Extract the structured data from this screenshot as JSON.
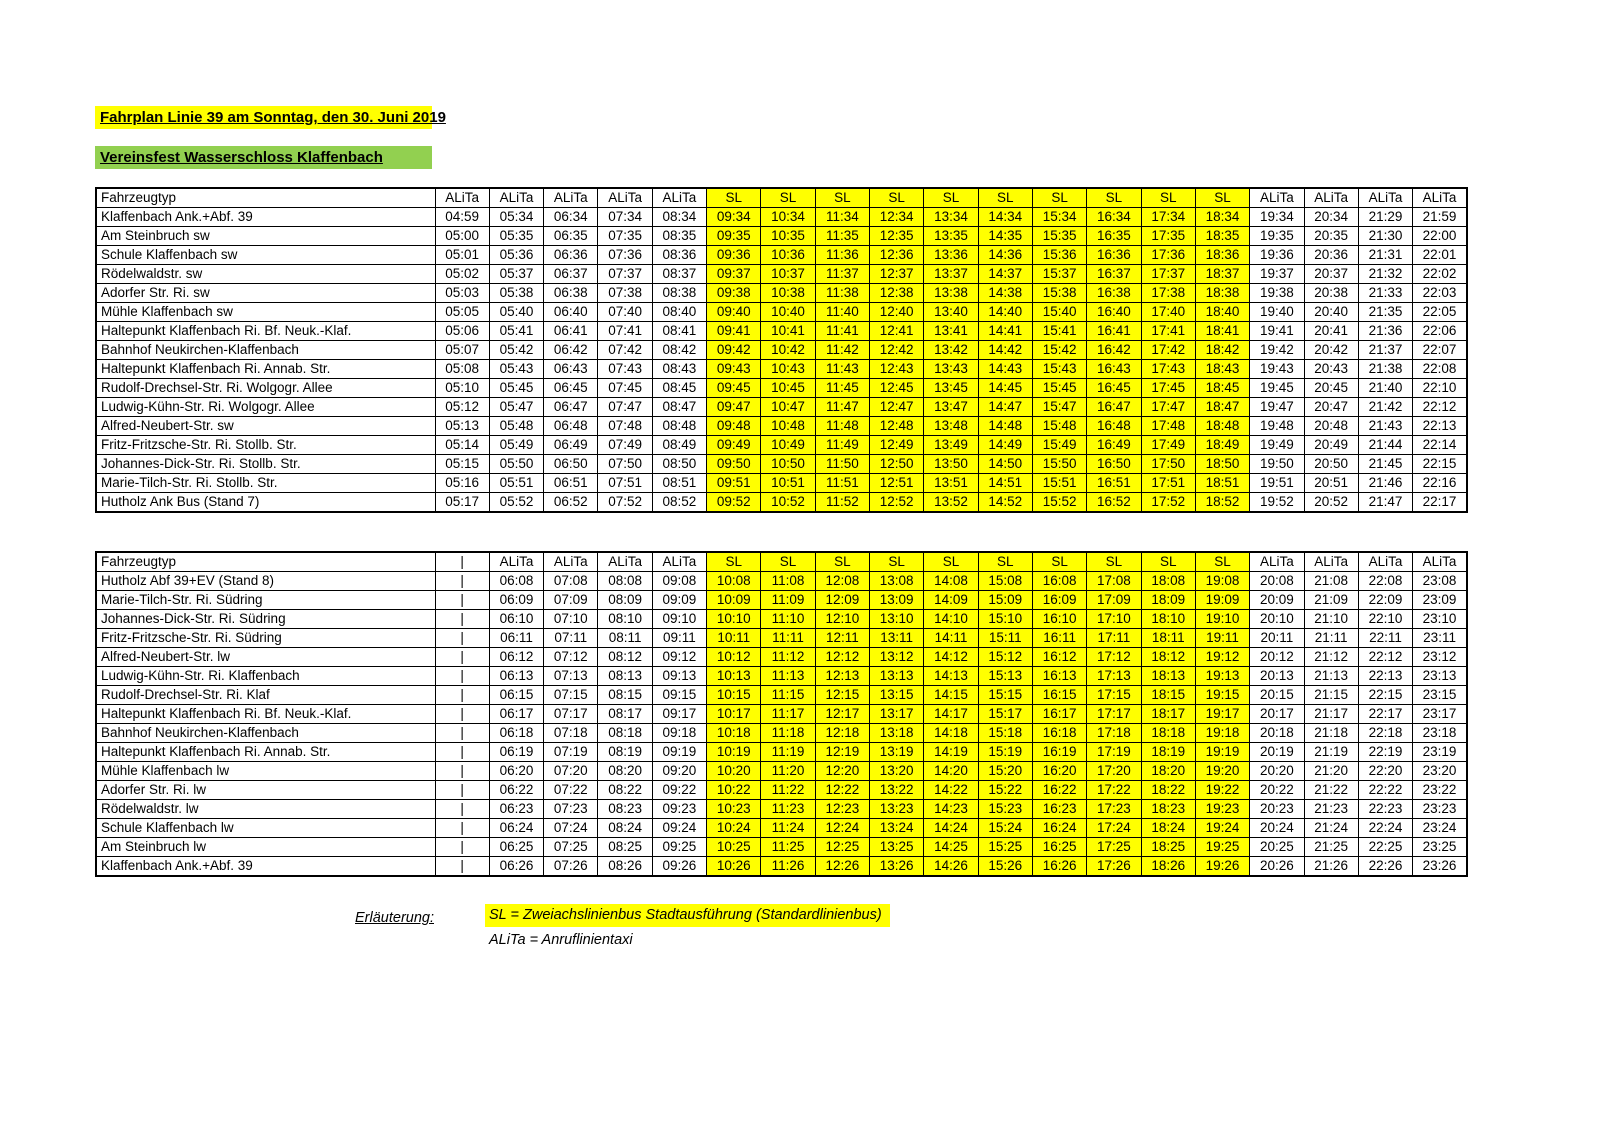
{
  "page": {
    "title": "Fahrplan Linie 39 am Sonntag, den 30. Juni 2019",
    "subtitle": "Vereinsfest Wasserschloss Klaffenbach"
  },
  "colors": {
    "highlight_yellow": "#FFFF00",
    "highlight_green": "#92D050"
  },
  "legend": {
    "label": "Erläuterung:",
    "sl_line": "SL = Zweiachslinienbus Stadtausführung (Standardlinienbus)",
    "alita_line": "ALiTa = Anruflinientaxi"
  },
  "tables": [
    {
      "id": "outbound",
      "header": [
        "Fahrzeugtyp",
        "ALiTa",
        "ALiTa",
        "ALiTa",
        "ALiTa",
        "ALiTa",
        "SL",
        "SL",
        "SL",
        "SL",
        "SL",
        "SL",
        "SL",
        "SL",
        "SL",
        "SL",
        "ALiTa",
        "ALiTa",
        "ALiTa",
        "ALiTa"
      ],
      "rows": [
        {
          "stop": "Klaffenbach Ank.+Abf. 39",
          "times": [
            "04:59",
            "05:34",
            "06:34",
            "07:34",
            "08:34",
            "09:34",
            "10:34",
            "11:34",
            "12:34",
            "13:34",
            "14:34",
            "15:34",
            "16:34",
            "17:34",
            "18:34",
            "19:34",
            "20:34",
            "21:29",
            "21:59"
          ]
        },
        {
          "stop": "Am Steinbruch sw",
          "times": [
            "05:00",
            "05:35",
            "06:35",
            "07:35",
            "08:35",
            "09:35",
            "10:35",
            "11:35",
            "12:35",
            "13:35",
            "14:35",
            "15:35",
            "16:35",
            "17:35",
            "18:35",
            "19:35",
            "20:35",
            "21:30",
            "22:00"
          ]
        },
        {
          "stop": "Schule Klaffenbach sw",
          "times": [
            "05:01",
            "05:36",
            "06:36",
            "07:36",
            "08:36",
            "09:36",
            "10:36",
            "11:36",
            "12:36",
            "13:36",
            "14:36",
            "15:36",
            "16:36",
            "17:36",
            "18:36",
            "19:36",
            "20:36",
            "21:31",
            "22:01"
          ]
        },
        {
          "stop": "Rödelwaldstr. sw",
          "times": [
            "05:02",
            "05:37",
            "06:37",
            "07:37",
            "08:37",
            "09:37",
            "10:37",
            "11:37",
            "12:37",
            "13:37",
            "14:37",
            "15:37",
            "16:37",
            "17:37",
            "18:37",
            "19:37",
            "20:37",
            "21:32",
            "22:02"
          ]
        },
        {
          "stop": "Adorfer Str. Ri. sw",
          "times": [
            "05:03",
            "05:38",
            "06:38",
            "07:38",
            "08:38",
            "09:38",
            "10:38",
            "11:38",
            "12:38",
            "13:38",
            "14:38",
            "15:38",
            "16:38",
            "17:38",
            "18:38",
            "19:38",
            "20:38",
            "21:33",
            "22:03"
          ]
        },
        {
          "stop": "Mühle Klaffenbach sw",
          "times": [
            "05:05",
            "05:40",
            "06:40",
            "07:40",
            "08:40",
            "09:40",
            "10:40",
            "11:40",
            "12:40",
            "13:40",
            "14:40",
            "15:40",
            "16:40",
            "17:40",
            "18:40",
            "19:40",
            "20:40",
            "21:35",
            "22:05"
          ]
        },
        {
          "stop": "Haltepunkt Klaffenbach Ri. Bf. Neuk.-Klaf.",
          "times": [
            "05:06",
            "05:41",
            "06:41",
            "07:41",
            "08:41",
            "09:41",
            "10:41",
            "11:41",
            "12:41",
            "13:41",
            "14:41",
            "15:41",
            "16:41",
            "17:41",
            "18:41",
            "19:41",
            "20:41",
            "21:36",
            "22:06"
          ]
        },
        {
          "stop": "Bahnhof Neukirchen-Klaffenbach",
          "times": [
            "05:07",
            "05:42",
            "06:42",
            "07:42",
            "08:42",
            "09:42",
            "10:42",
            "11:42",
            "12:42",
            "13:42",
            "14:42",
            "15:42",
            "16:42",
            "17:42",
            "18:42",
            "19:42",
            "20:42",
            "21:37",
            "22:07"
          ]
        },
        {
          "stop": "Haltepunkt Klaffenbach Ri. Annab. Str.",
          "times": [
            "05:08",
            "05:43",
            "06:43",
            "07:43",
            "08:43",
            "09:43",
            "10:43",
            "11:43",
            "12:43",
            "13:43",
            "14:43",
            "15:43",
            "16:43",
            "17:43",
            "18:43",
            "19:43",
            "20:43",
            "21:38",
            "22:08"
          ]
        },
        {
          "stop": "Rudolf-Drechsel-Str. Ri. Wolgogr. Allee",
          "times": [
            "05:10",
            "05:45",
            "06:45",
            "07:45",
            "08:45",
            "09:45",
            "10:45",
            "11:45",
            "12:45",
            "13:45",
            "14:45",
            "15:45",
            "16:45",
            "17:45",
            "18:45",
            "19:45",
            "20:45",
            "21:40",
            "22:10"
          ]
        },
        {
          "stop": "Ludwig-Kühn-Str. Ri. Wolgogr. Allee",
          "times": [
            "05:12",
            "05:47",
            "06:47",
            "07:47",
            "08:47",
            "09:47",
            "10:47",
            "11:47",
            "12:47",
            "13:47",
            "14:47",
            "15:47",
            "16:47",
            "17:47",
            "18:47",
            "19:47",
            "20:47",
            "21:42",
            "22:12"
          ]
        },
        {
          "stop": "Alfred-Neubert-Str. sw",
          "times": [
            "05:13",
            "05:48",
            "06:48",
            "07:48",
            "08:48",
            "09:48",
            "10:48",
            "11:48",
            "12:48",
            "13:48",
            "14:48",
            "15:48",
            "16:48",
            "17:48",
            "18:48",
            "19:48",
            "20:48",
            "21:43",
            "22:13"
          ]
        },
        {
          "stop": "Fritz-Fritzsche-Str. Ri. Stollb. Str.",
          "times": [
            "05:14",
            "05:49",
            "06:49",
            "07:49",
            "08:49",
            "09:49",
            "10:49",
            "11:49",
            "12:49",
            "13:49",
            "14:49",
            "15:49",
            "16:49",
            "17:49",
            "18:49",
            "19:49",
            "20:49",
            "21:44",
            "22:14"
          ]
        },
        {
          "stop": "Johannes-Dick-Str. Ri. Stollb. Str.",
          "times": [
            "05:15",
            "05:50",
            "06:50",
            "07:50",
            "08:50",
            "09:50",
            "10:50",
            "11:50",
            "12:50",
            "13:50",
            "14:50",
            "15:50",
            "16:50",
            "17:50",
            "18:50",
            "19:50",
            "20:50",
            "21:45",
            "22:15"
          ]
        },
        {
          "stop": "Marie-Tilch-Str. Ri. Stollb. Str.",
          "times": [
            "05:16",
            "05:51",
            "06:51",
            "07:51",
            "08:51",
            "09:51",
            "10:51",
            "11:51",
            "12:51",
            "13:51",
            "14:51",
            "15:51",
            "16:51",
            "17:51",
            "18:51",
            "19:51",
            "20:51",
            "21:46",
            "22:16"
          ]
        },
        {
          "stop": "Hutholz Ank Bus (Stand 7)",
          "times": [
            "05:17",
            "05:52",
            "06:52",
            "07:52",
            "08:52",
            "09:52",
            "10:52",
            "11:52",
            "12:52",
            "13:52",
            "14:52",
            "15:52",
            "16:52",
            "17:52",
            "18:52",
            "19:52",
            "20:52",
            "21:47",
            "22:17"
          ]
        }
      ]
    },
    {
      "id": "return",
      "header": [
        "Fahrzeugtyp",
        "|",
        "ALiTa",
        "ALiTa",
        "ALiTa",
        "ALiTa",
        "SL",
        "SL",
        "SL",
        "SL",
        "SL",
        "SL",
        "SL",
        "SL",
        "SL",
        "SL",
        "ALiTa",
        "ALiTa",
        "ALiTa",
        "ALiTa"
      ],
      "rows": [
        {
          "stop": "Hutholz Abf 39+EV (Stand 8)",
          "times": [
            "|",
            "06:08",
            "07:08",
            "08:08",
            "09:08",
            "10:08",
            "11:08",
            "12:08",
            "13:08",
            "14:08",
            "15:08",
            "16:08",
            "17:08",
            "18:08",
            "19:08",
            "20:08",
            "21:08",
            "22:08",
            "23:08"
          ]
        },
        {
          "stop": "Marie-Tilch-Str. Ri. Südring",
          "times": [
            "|",
            "06:09",
            "07:09",
            "08:09",
            "09:09",
            "10:09",
            "11:09",
            "12:09",
            "13:09",
            "14:09",
            "15:09",
            "16:09",
            "17:09",
            "18:09",
            "19:09",
            "20:09",
            "21:09",
            "22:09",
            "23:09"
          ]
        },
        {
          "stop": "Johannes-Dick-Str. Ri. Südring",
          "times": [
            "|",
            "06:10",
            "07:10",
            "08:10",
            "09:10",
            "10:10",
            "11:10",
            "12:10",
            "13:10",
            "14:10",
            "15:10",
            "16:10",
            "17:10",
            "18:10",
            "19:10",
            "20:10",
            "21:10",
            "22:10",
            "23:10"
          ]
        },
        {
          "stop": "Fritz-Fritzsche-Str. Ri. Südring",
          "times": [
            "|",
            "06:11",
            "07:11",
            "08:11",
            "09:11",
            "10:11",
            "11:11",
            "12:11",
            "13:11",
            "14:11",
            "15:11",
            "16:11",
            "17:11",
            "18:11",
            "19:11",
            "20:11",
            "21:11",
            "22:11",
            "23:11"
          ]
        },
        {
          "stop": "Alfred-Neubert-Str. lw",
          "times": [
            "|",
            "06:12",
            "07:12",
            "08:12",
            "09:12",
            "10:12",
            "11:12",
            "12:12",
            "13:12",
            "14:12",
            "15:12",
            "16:12",
            "17:12",
            "18:12",
            "19:12",
            "20:12",
            "21:12",
            "22:12",
            "23:12"
          ]
        },
        {
          "stop": "Ludwig-Kühn-Str. Ri. Klaffenbach",
          "times": [
            "|",
            "06:13",
            "07:13",
            "08:13",
            "09:13",
            "10:13",
            "11:13",
            "12:13",
            "13:13",
            "14:13",
            "15:13",
            "16:13",
            "17:13",
            "18:13",
            "19:13",
            "20:13",
            "21:13",
            "22:13",
            "23:13"
          ]
        },
        {
          "stop": "Rudolf-Drechsel-Str. Ri. Klaf",
          "times": [
            "|",
            "06:15",
            "07:15",
            "08:15",
            "09:15",
            "10:15",
            "11:15",
            "12:15",
            "13:15",
            "14:15",
            "15:15",
            "16:15",
            "17:15",
            "18:15",
            "19:15",
            "20:15",
            "21:15",
            "22:15",
            "23:15"
          ]
        },
        {
          "stop": "Haltepunkt Klaffenbach Ri. Bf. Neuk.-Klaf.",
          "times": [
            "|",
            "06:17",
            "07:17",
            "08:17",
            "09:17",
            "10:17",
            "11:17",
            "12:17",
            "13:17",
            "14:17",
            "15:17",
            "16:17",
            "17:17",
            "18:17",
            "19:17",
            "20:17",
            "21:17",
            "22:17",
            "23:17"
          ]
        },
        {
          "stop": "Bahnhof Neukirchen-Klaffenbach",
          "times": [
            "|",
            "06:18",
            "07:18",
            "08:18",
            "09:18",
            "10:18",
            "11:18",
            "12:18",
            "13:18",
            "14:18",
            "15:18",
            "16:18",
            "17:18",
            "18:18",
            "19:18",
            "20:18",
            "21:18",
            "22:18",
            "23:18"
          ]
        },
        {
          "stop": "Haltepunkt Klaffenbach Ri. Annab. Str.",
          "times": [
            "|",
            "06:19",
            "07:19",
            "08:19",
            "09:19",
            "10:19",
            "11:19",
            "12:19",
            "13:19",
            "14:19",
            "15:19",
            "16:19",
            "17:19",
            "18:19",
            "19:19",
            "20:19",
            "21:19",
            "22:19",
            "23:19"
          ]
        },
        {
          "stop": "Mühle Klaffenbach lw",
          "times": [
            "|",
            "06:20",
            "07:20",
            "08:20",
            "09:20",
            "10:20",
            "11:20",
            "12:20",
            "13:20",
            "14:20",
            "15:20",
            "16:20",
            "17:20",
            "18:20",
            "19:20",
            "20:20",
            "21:20",
            "22:20",
            "23:20"
          ]
        },
        {
          "stop": "Adorfer Str. Ri. lw",
          "times": [
            "|",
            "06:22",
            "07:22",
            "08:22",
            "09:22",
            "10:22",
            "11:22",
            "12:22",
            "13:22",
            "14:22",
            "15:22",
            "16:22",
            "17:22",
            "18:22",
            "19:22",
            "20:22",
            "21:22",
            "22:22",
            "23:22"
          ]
        },
        {
          "stop": "Rödelwaldstr. lw",
          "times": [
            "|",
            "06:23",
            "07:23",
            "08:23",
            "09:23",
            "10:23",
            "11:23",
            "12:23",
            "13:23",
            "14:23",
            "15:23",
            "16:23",
            "17:23",
            "18:23",
            "19:23",
            "20:23",
            "21:23",
            "22:23",
            "23:23"
          ]
        },
        {
          "stop": "Schule Klaffenbach lw",
          "times": [
            "|",
            "06:24",
            "07:24",
            "08:24",
            "09:24",
            "10:24",
            "11:24",
            "12:24",
            "13:24",
            "14:24",
            "15:24",
            "16:24",
            "17:24",
            "18:24",
            "19:24",
            "20:24",
            "21:24",
            "22:24",
            "23:24"
          ]
        },
        {
          "stop": "Am Steinbruch lw",
          "times": [
            "|",
            "06:25",
            "07:25",
            "08:25",
            "09:25",
            "10:25",
            "11:25",
            "12:25",
            "13:25",
            "14:25",
            "15:25",
            "16:25",
            "17:25",
            "18:25",
            "19:25",
            "20:25",
            "21:25",
            "22:25",
            "23:25"
          ]
        },
        {
          "stop": "Klaffenbach Ank.+Abf. 39",
          "times": [
            "|",
            "06:26",
            "07:26",
            "08:26",
            "09:26",
            "10:26",
            "11:26",
            "12:26",
            "13:26",
            "14:26",
            "15:26",
            "16:26",
            "17:26",
            "18:26",
            "19:26",
            "20:26",
            "21:26",
            "22:26",
            "23:26"
          ]
        }
      ]
    }
  ]
}
